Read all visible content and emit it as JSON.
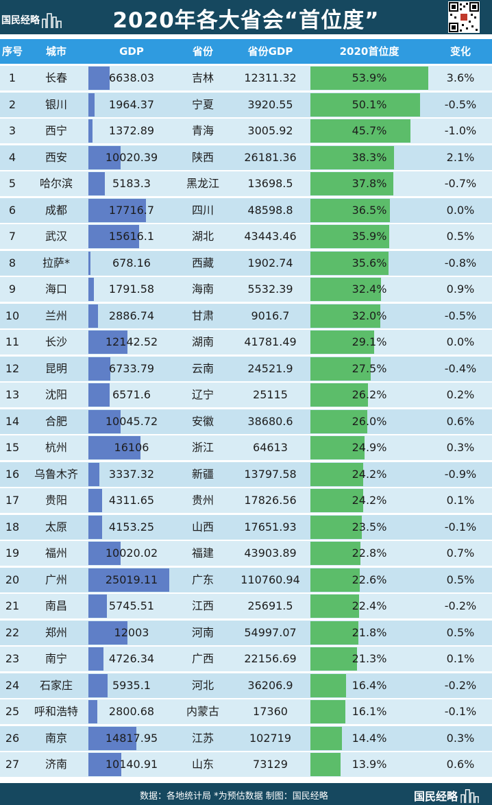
{
  "title": "2020年各大省会“首位度”",
  "logo_text": "国民经略",
  "headers": [
    "序号",
    "城市",
    "GDP",
    "省份",
    "省份GDP",
    "2020首位度",
    "变化"
  ],
  "source_text": "数据：各地统计局 *为预估数据  制图：国民经略",
  "colors": {
    "header_bg": "#16485f",
    "table_header_bg": "#2f9be0",
    "row_light": "#d8ecf5",
    "row_dark": "#c6e2f0",
    "gdp_bar": "#5f7fc7",
    "share_bar": "#5cbd6a"
  },
  "chart_data": {
    "type": "table",
    "title": "2020年各大省会“首位度”",
    "columns": [
      "序号",
      "城市",
      "GDP",
      "省份",
      "省份GDP",
      "2020首位度",
      "变化"
    ],
    "rows": [
      {
        "rank": "1",
        "city": "长春",
        "gdp": "6638.03",
        "province": "吉林",
        "province_gdp": "12311.32",
        "primacy": "53.9%",
        "change": "3.6%"
      },
      {
        "rank": "2",
        "city": "银川",
        "gdp": "1964.37",
        "province": "宁夏",
        "province_gdp": "3920.55",
        "primacy": "50.1%",
        "change": "-0.5%"
      },
      {
        "rank": "3",
        "city": "西宁",
        "gdp": "1372.89",
        "province": "青海",
        "province_gdp": "3005.92",
        "primacy": "45.7%",
        "change": "-1.0%"
      },
      {
        "rank": "4",
        "city": "西安",
        "gdp": "10020.39",
        "province": "陕西",
        "province_gdp": "26181.36",
        "primacy": "38.3%",
        "change": "2.1%"
      },
      {
        "rank": "5",
        "city": "哈尔滨",
        "gdp": "5183.3",
        "province": "黑龙江",
        "province_gdp": "13698.5",
        "primacy": "37.8%",
        "change": "-0.7%"
      },
      {
        "rank": "6",
        "city": "成都",
        "gdp": "17716.7",
        "province": "四川",
        "province_gdp": "48598.8",
        "primacy": "36.5%",
        "change": "0.0%"
      },
      {
        "rank": "7",
        "city": "武汉",
        "gdp": "15616.1",
        "province": "湖北",
        "province_gdp": "43443.46",
        "primacy": "35.9%",
        "change": "0.5%"
      },
      {
        "rank": "8",
        "city": "拉萨*",
        "gdp": "678.16",
        "province": "西藏",
        "province_gdp": "1902.74",
        "primacy": "35.6%",
        "change": "-0.8%"
      },
      {
        "rank": "9",
        "city": "海口",
        "gdp": "1791.58",
        "province": "海南",
        "province_gdp": "5532.39",
        "primacy": "32.4%",
        "change": "0.9%"
      },
      {
        "rank": "10",
        "city": "兰州",
        "gdp": "2886.74",
        "province": "甘肃",
        "province_gdp": "9016.7",
        "primacy": "32.0%",
        "change": "-0.5%"
      },
      {
        "rank": "11",
        "city": "长沙",
        "gdp": "12142.52",
        "province": "湖南",
        "province_gdp": "41781.49",
        "primacy": "29.1%",
        "change": "0.0%"
      },
      {
        "rank": "12",
        "city": "昆明",
        "gdp": "6733.79",
        "province": "云南",
        "province_gdp": "24521.9",
        "primacy": "27.5%",
        "change": "-0.4%"
      },
      {
        "rank": "13",
        "city": "沈阳",
        "gdp": "6571.6",
        "province": "辽宁",
        "province_gdp": "25115",
        "primacy": "26.2%",
        "change": "0.2%"
      },
      {
        "rank": "14",
        "city": "合肥",
        "gdp": "10045.72",
        "province": "安徽",
        "province_gdp": "38680.6",
        "primacy": "26.0%",
        "change": "0.6%"
      },
      {
        "rank": "15",
        "city": "杭州",
        "gdp": "16106",
        "province": "浙江",
        "province_gdp": "64613",
        "primacy": "24.9%",
        "change": "0.3%"
      },
      {
        "rank": "16",
        "city": "乌鲁木齐",
        "gdp": "3337.32",
        "province": "新疆",
        "province_gdp": "13797.58",
        "primacy": "24.2%",
        "change": "-0.9%"
      },
      {
        "rank": "17",
        "city": "贵阳",
        "gdp": "4311.65",
        "province": "贵州",
        "province_gdp": "17826.56",
        "primacy": "24.2%",
        "change": "0.1%"
      },
      {
        "rank": "18",
        "city": "太原",
        "gdp": "4153.25",
        "province": "山西",
        "province_gdp": "17651.93",
        "primacy": "23.5%",
        "change": "-0.1%"
      },
      {
        "rank": "19",
        "city": "福州",
        "gdp": "10020.02",
        "province": "福建",
        "province_gdp": "43903.89",
        "primacy": "22.8%",
        "change": "0.7%"
      },
      {
        "rank": "20",
        "city": "广州",
        "gdp": "25019.11",
        "province": "广东",
        "province_gdp": "110760.94",
        "primacy": "22.6%",
        "change": "0.5%"
      },
      {
        "rank": "21",
        "city": "南昌",
        "gdp": "5745.51",
        "province": "江西",
        "province_gdp": "25691.5",
        "primacy": "22.4%",
        "change": "-0.2%"
      },
      {
        "rank": "22",
        "city": "郑州",
        "gdp": "12003",
        "province": "河南",
        "province_gdp": "54997.07",
        "primacy": "21.8%",
        "change": "0.5%"
      },
      {
        "rank": "23",
        "city": "南宁",
        "gdp": "4726.34",
        "province": "广西",
        "province_gdp": "22156.69",
        "primacy": "21.3%",
        "change": "0.1%"
      },
      {
        "rank": "24",
        "city": "石家庄",
        "gdp": "5935.1",
        "province": "河北",
        "province_gdp": "36206.9",
        "primacy": "16.4%",
        "change": "-0.2%"
      },
      {
        "rank": "25",
        "city": "呼和浩特",
        "gdp": "2800.68",
        "province": "内蒙古",
        "province_gdp": "17360",
        "primacy": "16.1%",
        "change": "-0.1%"
      },
      {
        "rank": "26",
        "city": "南京",
        "gdp": "14817.95",
        "province": "江苏",
        "province_gdp": "102719",
        "primacy": "14.4%",
        "change": "0.3%"
      },
      {
        "rank": "27",
        "city": "济南",
        "gdp": "10140.91",
        "province": "山东",
        "province_gdp": "73129",
        "primacy": "13.9%",
        "change": "0.6%"
      }
    ],
    "gdp_bar_max": 25019.11,
    "primacy_bar_max": 53.9
  }
}
